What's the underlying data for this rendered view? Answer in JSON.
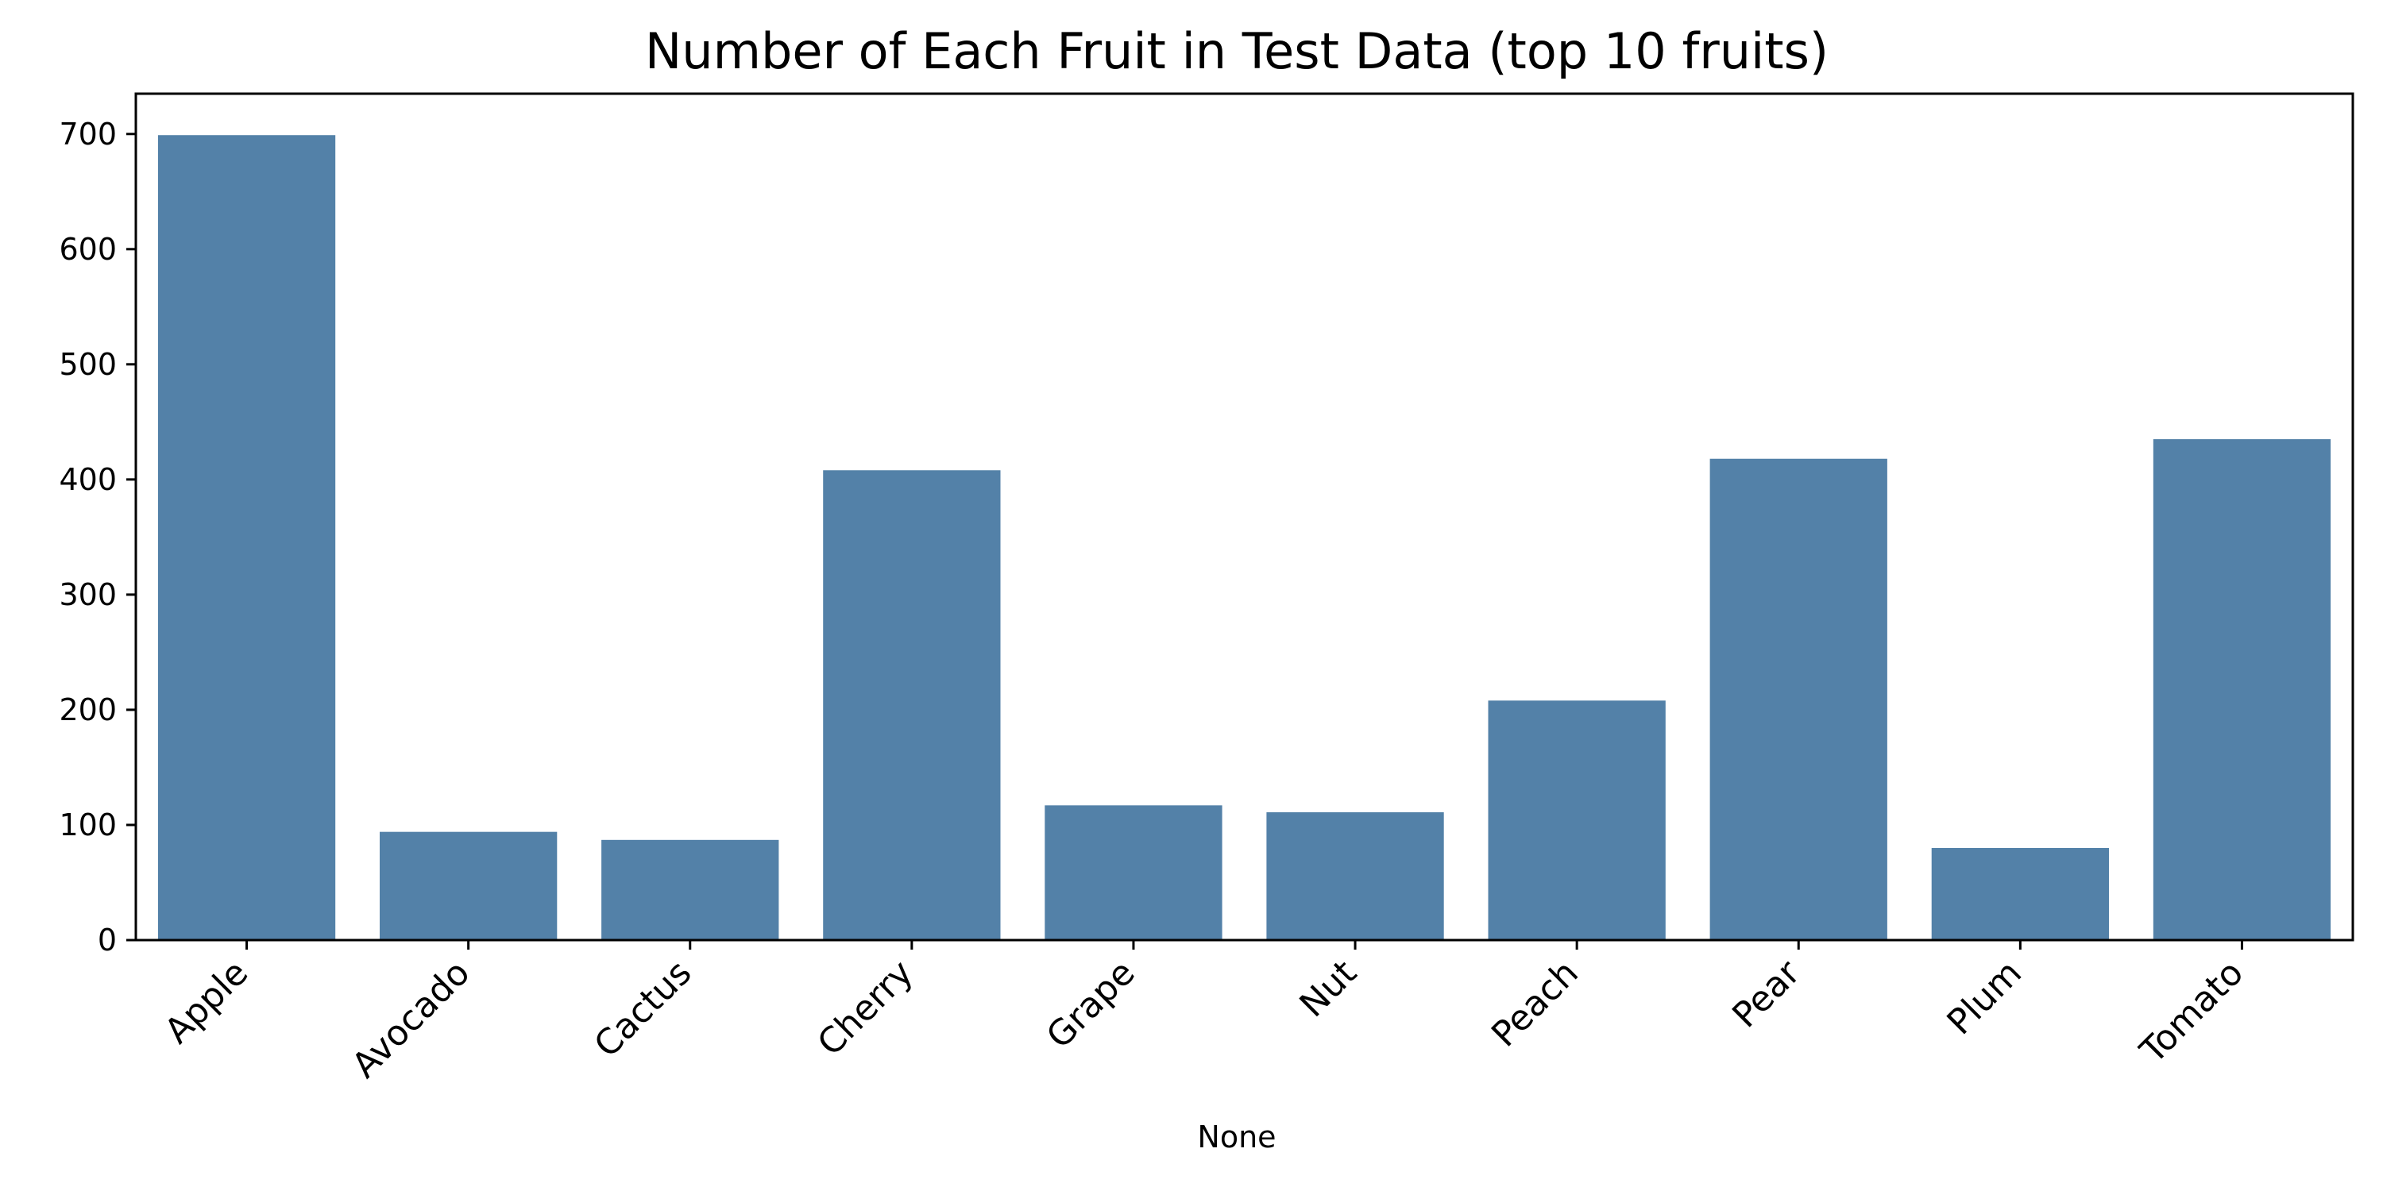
{
  "chart_data": {
    "type": "bar",
    "title": "Number of Each Fruit in Test Data (top 10 fruits)",
    "xlabel": "None",
    "ylabel": "",
    "categories": [
      "Apple",
      "Avocado",
      "Cactus",
      "Cherry",
      "Grape",
      "Nut",
      "Peach",
      "Pear",
      "Plum",
      "Tomato"
    ],
    "values": [
      699,
      94,
      87,
      408,
      117,
      111,
      208,
      418,
      80,
      435
    ],
    "ylim": [
      0,
      735
    ],
    "yticks": [
      0,
      100,
      200,
      300,
      400,
      500,
      600,
      700
    ],
    "grid": false,
    "legend": "none",
    "bar_color": "#5381a8",
    "axis_color": "#000000",
    "background": "#ffffff"
  }
}
